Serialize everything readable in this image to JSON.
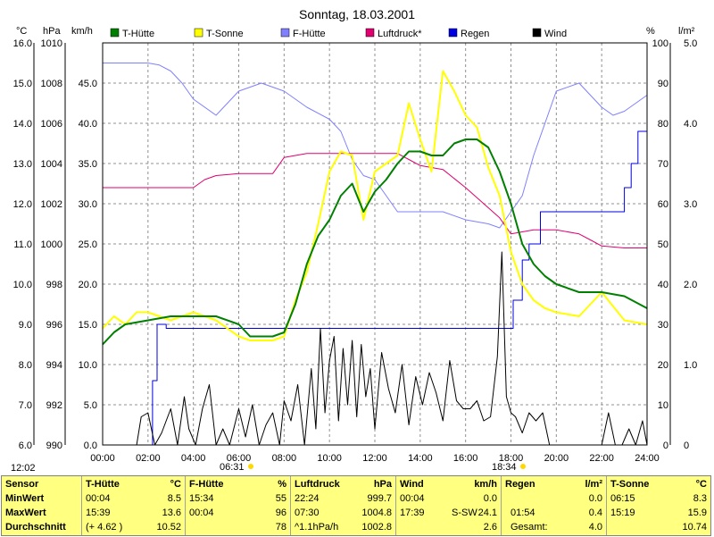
{
  "chart_data": {
    "type": "line",
    "title": "Sonntag, 18.03.2001",
    "time_stamp": "12:02",
    "sunrise": "06:31",
    "sunset": "18:34",
    "x_ticks": [
      "00:00",
      "02:00",
      "04:00",
      "06:00",
      "08:00",
      "10:00",
      "12:00",
      "14:00",
      "16:00",
      "18:00",
      "20:00",
      "22:00",
      "24:00"
    ],
    "axes": {
      "celsius": {
        "unit": "°C",
        "range": [
          6.0,
          16.0
        ],
        "ticks": [
          "6.0",
          "7.0",
          "8.0",
          "9.0",
          "10.0",
          "11.0",
          "12.0",
          "13.0",
          "14.0",
          "15.0",
          "16.0"
        ]
      },
      "hpa": {
        "unit": "hPa",
        "range": [
          990,
          1010
        ],
        "ticks": [
          "990",
          "992",
          "994",
          "996",
          "998",
          "1000",
          "1002",
          "1004",
          "1006",
          "1008",
          "1010"
        ]
      },
      "kmh": {
        "unit": "km/h",
        "range": [
          0,
          50
        ],
        "ticks": [
          "0.0",
          "5.0",
          "10.0",
          "15.0",
          "20.0",
          "25.0",
          "30.0",
          "35.0",
          "40.0",
          "45.0"
        ]
      },
      "percent": {
        "unit": "%",
        "range": [
          0,
          100
        ],
        "ticks": [
          "0",
          "10",
          "20",
          "30",
          "40",
          "50",
          "60",
          "70",
          "80",
          "90",
          "100"
        ]
      },
      "rain": {
        "unit": "l/m²",
        "range": [
          0,
          5.0
        ],
        "ticks": [
          "0",
          "1.0",
          "2.0",
          "3.0",
          "4.0",
          "5.0"
        ]
      }
    },
    "series": [
      {
        "name": "T-Hütte",
        "color": "#008000",
        "axis": "celsius",
        "x": [
          0,
          0.5,
          1,
          2,
          3,
          4,
          5,
          6,
          6.5,
          7,
          7.5,
          8,
          8.5,
          9,
          9.5,
          10,
          10.5,
          11,
          11.5,
          12,
          12.5,
          13,
          13.5,
          14,
          14.5,
          15,
          15.5,
          16,
          16.5,
          17,
          17.5,
          18,
          18.5,
          19,
          19.5,
          20,
          21,
          22,
          23,
          24
        ],
        "y": [
          8.5,
          8.8,
          9.0,
          9.1,
          9.2,
          9.2,
          9.2,
          9.0,
          8.7,
          8.7,
          8.7,
          8.8,
          9.5,
          10.5,
          11.2,
          11.6,
          12.2,
          12.5,
          11.8,
          12.3,
          12.6,
          13.0,
          13.3,
          13.3,
          13.2,
          13.2,
          13.5,
          13.6,
          13.6,
          13.4,
          12.8,
          12.0,
          11.0,
          10.5,
          10.2,
          10.0,
          9.8,
          9.8,
          9.7,
          9.4
        ]
      },
      {
        "name": "T-Sonne",
        "color": "#ffff00",
        "axis": "celsius",
        "x": [
          0,
          0.5,
          1,
          1.5,
          2,
          3,
          4,
          5,
          6,
          6.5,
          7,
          7.5,
          8,
          8.5,
          9,
          9.5,
          10,
          10.5,
          11,
          11.5,
          12,
          12.5,
          13,
          13.5,
          14,
          14.5,
          15,
          15.5,
          16,
          16.5,
          17,
          17.5,
          18,
          18.5,
          19,
          19.5,
          20,
          21,
          22,
          23,
          24
        ],
        "y": [
          8.9,
          9.2,
          9.0,
          9.3,
          9.3,
          9.1,
          9.3,
          9.1,
          8.7,
          8.6,
          8.6,
          8.6,
          8.7,
          9.6,
          10.3,
          11.5,
          12.8,
          13.3,
          13.2,
          11.6,
          12.8,
          13.0,
          13.2,
          14.5,
          13.6,
          12.8,
          15.3,
          14.8,
          14.2,
          13.9,
          12.9,
          12.2,
          10.8,
          10.0,
          9.6,
          9.4,
          9.3,
          9.2,
          9.8,
          9.1,
          9.0
        ]
      },
      {
        "name": "F-Hütte",
        "color": "#8080ff",
        "axis": "percent",
        "x": [
          0,
          1,
          2,
          2.5,
          3,
          3.5,
          4,
          5,
          6,
          7,
          8,
          9,
          10,
          10.5,
          11,
          11.5,
          12,
          13,
          14,
          15,
          16,
          17,
          17.5,
          18,
          18.5,
          19,
          20,
          21,
          22,
          22.5,
          23,
          24
        ],
        "y": [
          95,
          95,
          95,
          94.5,
          93,
          90,
          86,
          82,
          88,
          90,
          88,
          84,
          81,
          78,
          71,
          67,
          66,
          58,
          58,
          58,
          56,
          55,
          54,
          58,
          62,
          72,
          88,
          90,
          84,
          82,
          83,
          87
        ]
      },
      {
        "name": "Luftdruck*",
        "color": "#e00070",
        "axis": "hpa",
        "x": [
          0,
          1,
          2,
          3,
          4,
          4.5,
          5,
          6,
          7,
          7.5,
          8,
          9,
          10,
          11,
          12,
          13,
          13.5,
          14,
          15,
          16,
          17,
          17.5,
          18,
          19,
          20,
          21,
          21.5,
          22,
          23,
          24
        ],
        "y": [
          1002.8,
          1002.8,
          1002.8,
          1002.8,
          1002.8,
          1003.2,
          1003.4,
          1003.5,
          1003.5,
          1003.5,
          1004.3,
          1004.5,
          1004.5,
          1004.5,
          1004.5,
          1004.5,
          1004.2,
          1003.9,
          1003.7,
          1002.8,
          1001.8,
          1001.3,
          1000.5,
          1000.7,
          1000.7,
          1000.5,
          1000.2,
          999.9,
          999.8,
          999.8
        ]
      },
      {
        "name": "Regen",
        "color": "#0000e0",
        "axis": "rain",
        "x": [
          0,
          1.9,
          2.2,
          2.4,
          2.7,
          2.8,
          6,
          8,
          10,
          12,
          14,
          16,
          17.8,
          18.1,
          18.5,
          18.8,
          19.3,
          19.8,
          21,
          22.6,
          23,
          23.3,
          23.6,
          24
        ],
        "y": [
          0,
          0,
          0.8,
          1.5,
          1.5,
          1.45,
          1.45,
          1.45,
          1.45,
          1.45,
          1.45,
          1.45,
          1.45,
          1.8,
          2.3,
          2.5,
          2.9,
          2.9,
          2.9,
          2.9,
          3.2,
          3.5,
          3.9,
          4.0
        ]
      },
      {
        "name": "Wind",
        "color": "#000000",
        "axis": "kmh",
        "x": [
          0,
          1.5,
          1.7,
          2,
          2.3,
          2.6,
          3,
          3.3,
          3.6,
          3.8,
          4.1,
          4.4,
          4.7,
          5,
          5.3,
          5.6,
          6,
          6.3,
          6.6,
          6.9,
          7.2,
          7.5,
          7.8,
          8,
          8.3,
          8.6,
          8.9,
          9.2,
          9.4,
          9.6,
          9.8,
          10,
          10.2,
          10.4,
          10.6,
          10.8,
          11,
          11.2,
          11.4,
          11.6,
          11.8,
          12,
          12.3,
          12.6,
          12.9,
          13.2,
          13.5,
          13.8,
          14.1,
          14.4,
          14.7,
          15,
          15.3,
          15.6,
          15.9,
          16.2,
          16.5,
          16.8,
          17.1,
          17.4,
          17.6,
          17.8,
          18,
          18.2,
          18.5,
          18.8,
          19.1,
          19.4,
          19.7,
          20,
          21,
          22,
          22.3,
          22.6,
          22.9,
          23.2,
          23.5,
          23.8,
          24
        ],
        "y": [
          0,
          0,
          3.5,
          4.0,
          0,
          1.5,
          4.5,
          0,
          6.0,
          2.0,
          0,
          4.5,
          7.5,
          0,
          2.0,
          0,
          4.5,
          1.0,
          5.0,
          0,
          2.5,
          4.0,
          0,
          5.5,
          3.0,
          7.5,
          0,
          9.5,
          2.0,
          14.5,
          4.0,
          10.5,
          13.5,
          3.0,
          12.0,
          5.0,
          13.0,
          3.5,
          12.5,
          6.0,
          9.5,
          2.0,
          11.5,
          7.0,
          4.0,
          10.0,
          2.5,
          8.5,
          5.0,
          9.0,
          6.5,
          3.0,
          10.5,
          5.5,
          4.5,
          4.5,
          5.5,
          3.0,
          3.5,
          11.0,
          24.0,
          6.0,
          4.0,
          3.5,
          1.5,
          4.0,
          3.0,
          4.0,
          0,
          0,
          0,
          0,
          4.0,
          0,
          0,
          2.0,
          0,
          3.0,
          0
        ]
      }
    ]
  },
  "stats": {
    "sensor": {
      "header": "Sensor",
      "min": "MinWert",
      "max": "MaxWert",
      "avg": "Durchschnitt"
    },
    "t_huette": {
      "header": "T-Hütte",
      "unit": "°C",
      "min_time": "00:04",
      "min_val": "8.5",
      "max_time": "15:39",
      "max_val": "13.6",
      "avg_note": "(+ 4.62 )",
      "avg_val": "10.52"
    },
    "f_huette": {
      "header": "F-Hütte",
      "unit": "%",
      "min_time": "15:34",
      "min_val": "55",
      "max_time": "00:04",
      "max_val": "96",
      "avg_val": "78"
    },
    "luftdruck": {
      "header": "Luftdruck",
      "unit": "hPa",
      "min_time": "22:24",
      "min_val": "999.7",
      "max_time": "07:30",
      "max_val": "1004.8",
      "avg_note": "^1.1hPa/h",
      "avg_val": "1002.8"
    },
    "wind": {
      "header": "Wind",
      "unit": "km/h",
      "min_time": "00:04",
      "min_val": "0.0",
      "max_time": "17:39",
      "max_dir": "S-SW",
      "max_val": "24.1",
      "avg_val": "2.6"
    },
    "regen": {
      "header": "Regen",
      "unit": "l/m²",
      "min_val": "0.0",
      "max_time": "01:54",
      "max_val": "0.4",
      "avg_note": "Gesamt:",
      "avg_val": "4.0"
    },
    "t_sonne": {
      "header": "T-Sonne",
      "unit": "°C",
      "min_time": "06:15",
      "min_val": "8.3",
      "max_time": "15:19",
      "max_val": "15.9",
      "avg_val": "10.74"
    }
  }
}
